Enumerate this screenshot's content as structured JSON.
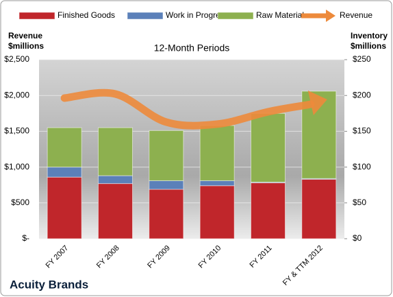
{
  "chart_data": {
    "type": "bar",
    "title": "12-Month Periods",
    "subtitle": "Acuity Brands",
    "ylabel": "Revenue $millions",
    "y2label": "Inventory $millions",
    "categories": [
      "FY 2007",
      "FY 2008",
      "FY 2009",
      "FY 2010",
      "FY 2011",
      "FY & TTM 2012"
    ],
    "series": [
      {
        "name": "Finished Goods",
        "color": "#c0262b",
        "axis": "y2",
        "values": [
          86,
          77,
          69,
          74,
          78,
          83
        ]
      },
      {
        "name": "Work in Progress",
        "color": "#5b80b9",
        "axis": "y2",
        "values": [
          14,
          11,
          12,
          7,
          1,
          1
        ]
      },
      {
        "name": "Raw Materials",
        "color": "#8db04f",
        "axis": "y2",
        "values": [
          55,
          67,
          70,
          77,
          96,
          122
        ]
      },
      {
        "name": "Revenue",
        "color": "#ed8a3b",
        "type": "line",
        "values": [
          1964,
          2021,
          1628,
          1600,
          1772,
          1916
        ]
      }
    ],
    "ylim": [
      0,
      2500
    ],
    "yticks": [
      {
        "value": 0,
        "label": "$-"
      },
      {
        "value": 500,
        "label": "$500"
      },
      {
        "value": 1000,
        "label": "$1,000"
      },
      {
        "value": 1500,
        "label": "$1,500"
      },
      {
        "value": 2000,
        "label": "$2,000"
      },
      {
        "value": 2500,
        "label": "$2,500"
      }
    ],
    "y2lim": [
      0,
      250
    ],
    "y2ticks": [
      {
        "value": 0,
        "label": "$0"
      },
      {
        "value": 50,
        "label": "$50"
      },
      {
        "value": 100,
        "label": "$100"
      },
      {
        "value": 150,
        "label": "$150"
      },
      {
        "value": 200,
        "label": "$200"
      },
      {
        "value": 250,
        "label": "$250"
      }
    ],
    "grid": true,
    "legend": "top"
  }
}
